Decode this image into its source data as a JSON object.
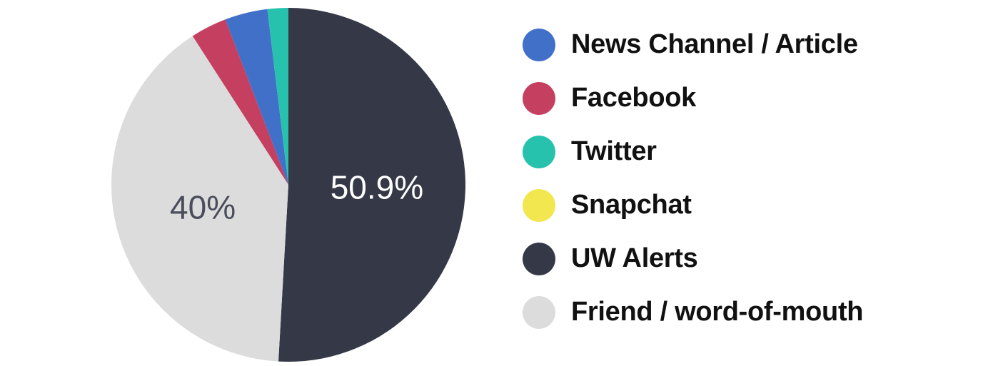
{
  "chart_data": {
    "type": "pie",
    "title": "",
    "slices": [
      {
        "label": "News Channel / Article",
        "value": 3.9,
        "color": "#4170c8"
      },
      {
        "label": "Facebook",
        "value": 3.3,
        "color": "#c53f60"
      },
      {
        "label": "Twitter",
        "value": 1.9,
        "color": "#26c2ad"
      },
      {
        "label": "Snapchat",
        "value": 0,
        "color": "#f2e74e"
      },
      {
        "label": "UW Alerts",
        "value": 50.9,
        "color": "#353847"
      },
      {
        "label": "Friend / word-of-mouth",
        "value": 40.0,
        "color": "#dcdcdc"
      }
    ],
    "data_labels": [
      {
        "text": "50.9%",
        "slice": "UW Alerts",
        "color": "#ffffff"
      },
      {
        "text": "40%",
        "slice": "Friend / word-of-mouth",
        "color": "#4a4d5a"
      }
    ],
    "legend": {
      "placement": "right",
      "entries": [
        "News Channel / Article",
        "Facebook",
        "Twitter",
        "Snapchat",
        "UW Alerts",
        "Friend / word-of-mouth"
      ]
    }
  }
}
